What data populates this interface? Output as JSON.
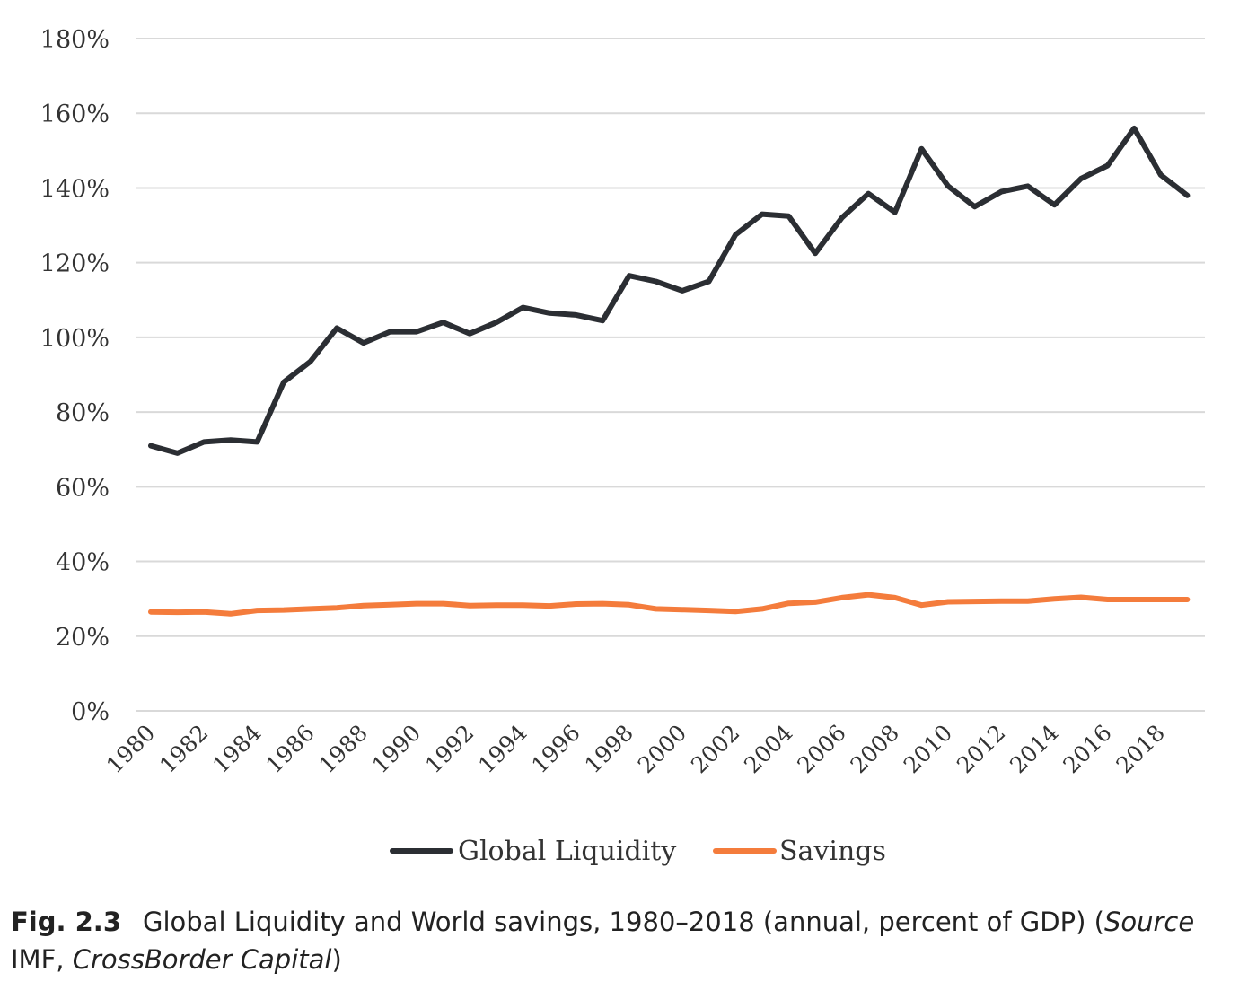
{
  "chart_data": {
    "type": "line",
    "title": "",
    "xlabel": "",
    "ylabel": "",
    "ylim": [
      0,
      180
    ],
    "yticks": [
      "0%",
      "20%",
      "40%",
      "60%",
      "80%",
      "100%",
      "120%",
      "140%",
      "160%",
      "180%"
    ],
    "xticks": [
      "1980",
      "1982",
      "1984",
      "1986",
      "1988",
      "1990",
      "1992",
      "1994",
      "1996",
      "1998",
      "2000",
      "2002",
      "2004",
      "2006",
      "2008",
      "2010",
      "2012",
      "2014",
      "2016",
      "2018"
    ],
    "x": [
      1980,
      1981,
      1982,
      1983,
      1984,
      1985,
      1986,
      1987,
      1988,
      1989,
      1990,
      1991,
      1992,
      1993,
      1994,
      1995,
      1996,
      1997,
      1998,
      1999,
      2000,
      2001,
      2002,
      2003,
      2004,
      2005,
      2006,
      2007,
      2008,
      2009,
      2010,
      2011,
      2012,
      2013,
      2014,
      2015,
      2016,
      2017,
      2018,
      2019
    ],
    "series": [
      {
        "name": "Global Liquidity",
        "color": "#2b2e33",
        "values": [
          71,
          69,
          72,
          72.5,
          72,
          88,
          93.5,
          102.5,
          98.5,
          101.5,
          101.5,
          104,
          101,
          104,
          108,
          106.5,
          106,
          104.5,
          116.5,
          115,
          112.5,
          115,
          127.5,
          133,
          132.5,
          122.5,
          132,
          138.5,
          133.5,
          150.5,
          140.5,
          135,
          139,
          140.5,
          135.5,
          142.5,
          146,
          156,
          143.5,
          138
        ]
      },
      {
        "name": "Savings",
        "color": "#f47c3c",
        "values": [
          26.5,
          26.4,
          26.5,
          26,
          26.9,
          27,
          27.3,
          27.6,
          28.2,
          28.4,
          28.7,
          28.7,
          28.2,
          28.3,
          28.3,
          28.1,
          28.6,
          28.7,
          28.4,
          27.3,
          27.1,
          26.9,
          26.6,
          27.3,
          28.8,
          29.1,
          30.3,
          31.1,
          30.3,
          28.3,
          29.2,
          29.3,
          29.4,
          29.4,
          30,
          30.4,
          29.8,
          29.8,
          29.8,
          29.8
        ]
      }
    ],
    "grid": true,
    "legend": "bottom"
  },
  "caption": {
    "fig_label": "Fig. 2.3",
    "text": "Global Liquidity and World savings, 1980–2018 (annual, percent of GDP) (",
    "source_label": "Source",
    "source_text": " IMF, ",
    "source_name": "CrossBorder Capital",
    "close": ")"
  }
}
